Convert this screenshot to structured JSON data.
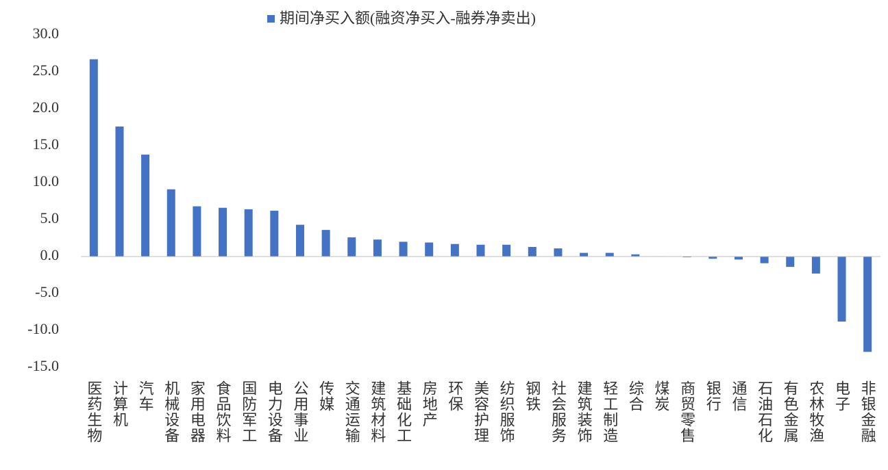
{
  "chart_data": {
    "type": "bar",
    "categories": [
      "医药生物",
      "计算机",
      "汽车",
      "机械设备",
      "家用电器",
      "食品饮料",
      "国防军工",
      "电力设备",
      "公用事业",
      "传媒",
      "交通运输",
      "建筑材料",
      "基础化工",
      "房地产",
      "环保",
      "美容护理",
      "纺织服饰",
      "钢铁",
      "社会服务",
      "建筑装饰",
      "轻工制造",
      "综合",
      "煤炭",
      "商贸零售",
      "银行",
      "通信",
      "石油石化",
      "有色金属",
      "农林牧渔",
      "电子",
      "非银金融"
    ],
    "series": [
      {
        "name": "期间净买入额(融资净买入-融券净卖出)",
        "color": "#4472c4",
        "values": [
          26.7,
          17.6,
          13.8,
          9.1,
          6.8,
          6.6,
          6.4,
          6.2,
          4.3,
          3.6,
          2.6,
          2.3,
          2.0,
          1.9,
          1.7,
          1.6,
          1.6,
          1.3,
          1.1,
          0.5,
          0.5,
          0.3,
          0.05,
          -0.1,
          -0.3,
          -0.4,
          -0.9,
          -1.4,
          -2.3,
          -8.8,
          -12.9
        ]
      }
    ],
    "ylim": [
      -15,
      30
    ],
    "yticks": [
      {
        "value": -15,
        "label": "-15.0"
      },
      {
        "value": -10,
        "label": "-10.0"
      },
      {
        "value": -5,
        "label": "-5.0"
      },
      {
        "value": 0,
        "label": "0.0"
      },
      {
        "value": 5,
        "label": "5.0"
      },
      {
        "value": 10,
        "label": "10.0"
      },
      {
        "value": 15,
        "label": "15.0"
      },
      {
        "value": 20,
        "label": "20.0"
      },
      {
        "value": 25,
        "label": "25.0"
      },
      {
        "value": 30,
        "label": "30.0"
      }
    ],
    "grid": false,
    "legend": "top"
  }
}
